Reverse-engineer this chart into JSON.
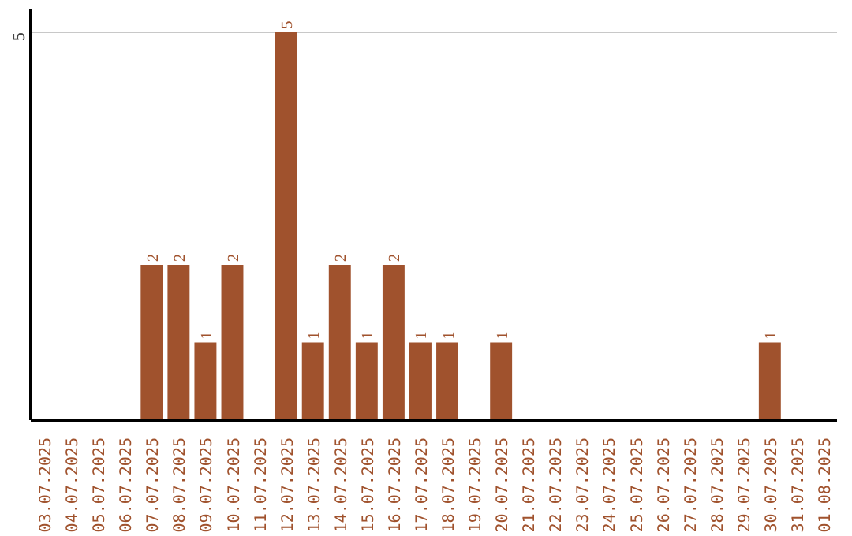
{
  "chart_data": {
    "type": "bar",
    "categories": [
      "03.07.2025",
      "04.07.2025",
      "05.07.2025",
      "06.07.2025",
      "07.07.2025",
      "08.07.2025",
      "09.07.2025",
      "10.07.2025",
      "11.07.2025",
      "12.07.2025",
      "13.07.2025",
      "14.07.2025",
      "15.07.2025",
      "16.07.2025",
      "17.07.2025",
      "18.07.2025",
      "19.07.2025",
      "20.07.2025",
      "21.07.2025",
      "22.07.2025",
      "23.07.2025",
      "24.07.2025",
      "25.07.2025",
      "26.07.2025",
      "27.07.2025",
      "28.07.2025",
      "29.07.2025",
      "30.07.2025",
      "31.07.2025",
      "01.08.2025"
    ],
    "values": [
      0,
      0,
      0,
      0,
      2,
      2,
      1,
      2,
      0,
      5,
      1,
      2,
      1,
      2,
      1,
      1,
      0,
      1,
      0,
      0,
      0,
      0,
      0,
      0,
      0,
      0,
      0,
      1,
      0,
      0
    ],
    "value_labels": [
      null,
      null,
      null,
      null,
      "2",
      "2",
      "1",
      "2",
      null,
      "5",
      "1",
      "2",
      "1",
      "2",
      "1",
      "1",
      null,
      "1",
      null,
      null,
      null,
      null,
      null,
      null,
      null,
      null,
      null,
      "1",
      null,
      null
    ],
    "color": "#a0522d",
    "ylim": [
      0,
      5.3
    ],
    "yticks": [
      5
    ],
    "grid": "y"
  }
}
